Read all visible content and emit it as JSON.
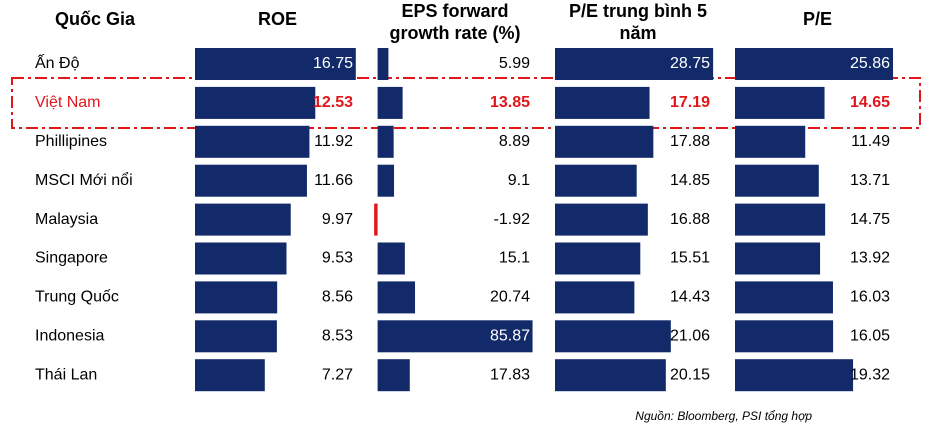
{
  "chart_data": {
    "type": "bar",
    "orientation": "horizontal",
    "category_header": "Quốc Gia",
    "categories": [
      "Ấn Độ",
      "Việt Nam",
      "Phillipines",
      "MSCI Mới nổi",
      "Malaysia",
      "Singapore",
      "Trung Quốc",
      "Indonesia",
      "Thái Lan"
    ],
    "highlight_index": 1,
    "highlight_color": "#e0161b",
    "series": [
      {
        "name": "ROE",
        "color": "#12296a",
        "xlim": [
          0,
          17.5
        ],
        "values": [
          16.75,
          12.53,
          11.92,
          11.66,
          9.97,
          9.53,
          8.56,
          8.53,
          7.27
        ]
      },
      {
        "name": "EPS forward growth rate (%)",
        "color": "#12296a",
        "xlim": [
          -2,
          90
        ],
        "values": [
          5.99,
          13.85,
          8.89,
          9.1,
          -1.92,
          15.1,
          20.74,
          85.87,
          17.83
        ]
      },
      {
        "name": "P/E trung bình 5 năm",
        "color": "#12296a",
        "xlim": [
          0,
          30
        ],
        "values": [
          28.75,
          17.19,
          17.88,
          14.85,
          16.88,
          15.51,
          14.43,
          21.06,
          20.15
        ]
      },
      {
        "name": "P/E",
        "color": "#12296a",
        "xlim": [
          0,
          27
        ],
        "values": [
          25.86,
          14.65,
          11.49,
          13.71,
          14.75,
          13.92,
          16.03,
          16.05,
          19.32
        ]
      }
    ],
    "source": "Nguồn: Bloomberg,  PSI tổng hợp"
  }
}
